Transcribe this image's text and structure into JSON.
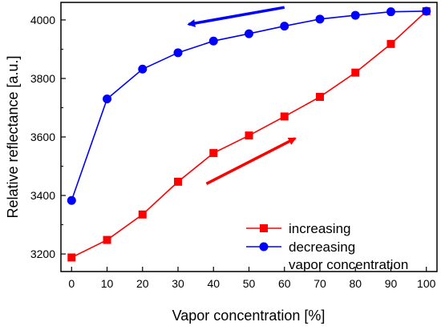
{
  "chart_data": {
    "type": "line",
    "title": "",
    "xlabel": "Vapor concentration [%]",
    "ylabel": "Relative reflectance [a.u.]",
    "x": [
      0,
      10,
      20,
      30,
      40,
      50,
      60,
      70,
      80,
      90,
      100
    ],
    "xlim": [
      -3,
      103
    ],
    "ylim": [
      3140,
      4060
    ],
    "xticks": [
      "0",
      "10",
      "20",
      "30",
      "40",
      "50",
      "60",
      "70",
      "80",
      "90",
      "100"
    ],
    "yticks": [
      "3200",
      "3400",
      "3600",
      "3800",
      "4000"
    ],
    "grid": false,
    "legend_position": "bottom-right",
    "series": [
      {
        "name": "increasing",
        "color": "#ff0000",
        "marker": "square",
        "values": [
          3188,
          3248,
          3335,
          3447,
          3545,
          3605,
          3670,
          3737,
          3820,
          3918,
          4030
        ]
      },
      {
        "name": "decreasing",
        "color": "#0000ff",
        "marker": "circle",
        "values": [
          3383,
          3730,
          3832,
          3888,
          3928,
          3953,
          3979,
          4003,
          4016,
          4028,
          4030
        ]
      }
    ],
    "legend_extra_line": "vapor concentration",
    "arrows": [
      {
        "series": "increasing",
        "color": "#ff0000",
        "from": [
          38,
          3440
        ],
        "to": [
          63,
          3595
        ]
      },
      {
        "series": "decreasing",
        "color": "#0000ff",
        "from": [
          60,
          4043
        ],
        "to": [
          33,
          3985
        ]
      }
    ]
  }
}
